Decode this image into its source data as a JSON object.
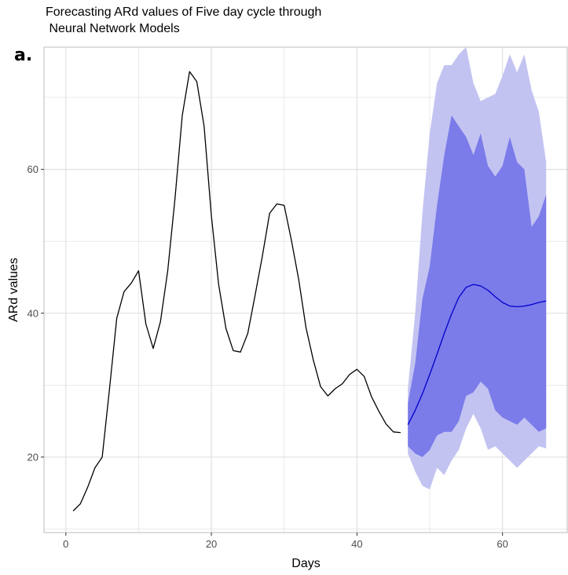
{
  "chart_data": {
    "type": "line",
    "title_line1": "Forecasting ARd values of Five day cycle through",
    "title_line2": " Neural Network Models",
    "panel_label": "a.",
    "xlabel": "Days",
    "ylabel": "ARd values",
    "xlim": [
      -3,
      69
    ],
    "ylim": [
      9.5,
      77
    ],
    "x_ticks": [
      0,
      20,
      40,
      60
    ],
    "y_ticks": [
      20,
      40,
      60
    ],
    "grid": true,
    "colors": {
      "observed": "#000000",
      "forecast_mean": "#0000cc",
      "pi80": "#7b7bea",
      "pi95": "#c3c3f2",
      "grid": "#dedede",
      "panel_border": "#bdbdbd"
    },
    "series": [
      {
        "x": [
          1,
          2,
          3,
          4,
          5,
          6,
          7,
          8,
          9,
          10,
          11,
          12,
          13,
          14,
          15,
          16,
          17,
          18,
          19,
          20,
          21,
          22,
          23,
          24,
          25,
          26,
          27,
          28,
          29,
          30,
          31,
          32,
          33,
          34,
          35,
          36,
          37,
          38,
          39,
          40,
          41,
          42,
          43,
          44,
          45,
          46
        ],
        "values": [
          12.5,
          13.5,
          15.8,
          18.5,
          20,
          29.5,
          39.3,
          43,
          44.2,
          45.9,
          38.5,
          35.1,
          38.8,
          45.9,
          56,
          67.5,
          73.6,
          72.2,
          66,
          53.5,
          44,
          37.9,
          34.8,
          34.6,
          37.2,
          42.5,
          47.9,
          53.9,
          55.2,
          55,
          50.1,
          44.7,
          38,
          33.5,
          29.8,
          28.5,
          29.5,
          30.2,
          31.5,
          32.2,
          31.2,
          28.4,
          26.4,
          24.6,
          23.5,
          23.4
        ]
      },
      {
        "x": [
          47,
          48,
          49,
          50,
          51,
          52,
          53,
          54,
          55,
          56,
          57,
          58,
          59,
          60,
          61,
          62,
          63,
          64,
          65,
          66
        ],
        "values": [
          24.5,
          26.5,
          28.8,
          31.5,
          34.3,
          37.2,
          39.9,
          42.2,
          43.6,
          44,
          43.8,
          43.2,
          42.3,
          41.5,
          41,
          40.9,
          41,
          41.2,
          41.5,
          41.7
        ]
      }
    ],
    "intervals": [
      {
        "level": "95",
        "x": [
          47,
          48,
          49,
          50,
          51,
          52,
          53,
          54,
          55,
          56,
          57,
          58,
          59,
          60,
          61,
          62,
          63,
          64,
          65,
          66
        ],
        "lower": [
          20.5,
          18,
          16,
          15.5,
          18.5,
          17.5,
          19.5,
          21,
          24,
          26,
          24,
          21,
          21.5,
          20.5,
          19.5,
          18.5,
          19.5,
          20.5,
          21.5,
          21.2
        ],
        "upper": [
          29.5,
          40,
          54,
          65,
          72,
          74.5,
          74.5,
          76,
          77,
          72,
          69.5,
          70,
          70.5,
          73,
          76,
          73.5,
          76,
          71,
          68,
          61
        ]
      },
      {
        "level": "80",
        "x": [
          47,
          48,
          49,
          50,
          51,
          52,
          53,
          54,
          55,
          56,
          57,
          58,
          59,
          60,
          61,
          62,
          63,
          64,
          65,
          66
        ],
        "lower": [
          21.5,
          20.5,
          20,
          21,
          23,
          23.5,
          23.5,
          25,
          28.5,
          29,
          30.5,
          29.5,
          26.5,
          25.5,
          25,
          24.5,
          25.5,
          24.5,
          23.5,
          24
        ],
        "upper": [
          27.5,
          33,
          42,
          46.5,
          55,
          62,
          67.5,
          66,
          64.5,
          62,
          65,
          60.5,
          59,
          60.5,
          64.5,
          61,
          60,
          52,
          53.5,
          56.5
        ]
      }
    ]
  }
}
